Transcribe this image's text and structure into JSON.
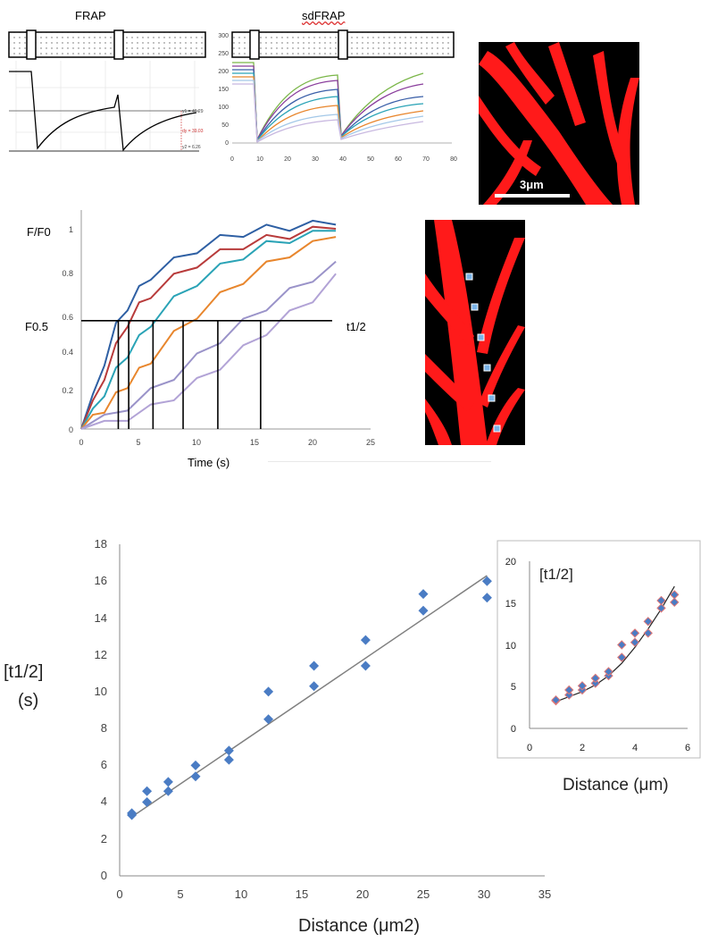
{
  "panel_a": {
    "frap_title": "FRAP",
    "sdfrap_title": "sdFRAP",
    "frap_readouts": [
      "y1 = 46.29",
      "dy = 39.03",
      "y2 = 6.26"
    ],
    "sdfrap_y_ticks": [
      "300",
      "250",
      "200",
      "150",
      "100",
      "50",
      "0"
    ],
    "sdfrap_x_ticks": [
      "0",
      "10",
      "20",
      "30",
      "40",
      "50",
      "60",
      "70",
      "80"
    ],
    "scale_bar": "3μm"
  },
  "panel_b": {
    "y_axis_label": "F/F0",
    "f_half_label": "F0.5",
    "t_half_label": "t1/2",
    "x_axis_label": "Time (s)",
    "y_ticks": [
      "1",
      "0.8",
      "0.6",
      "0.4",
      "0.2",
      "0"
    ],
    "x_ticks": [
      "0",
      "5",
      "10",
      "15",
      "20",
      "25"
    ]
  },
  "panel_c": {
    "y_label_line1": "[t1/2]",
    "y_label_line2": "(s)",
    "x_axis_label": "Distance (μm2)",
    "y_ticks": [
      "0",
      "2",
      "4",
      "6",
      "8",
      "10",
      "12",
      "14",
      "16",
      "18"
    ],
    "x_ticks": [
      "0",
      "5",
      "10",
      "15",
      "20",
      "25",
      "30",
      "35"
    ],
    "inset_label": "[t1/2]",
    "inset_x_label": "Distance (μm)",
    "inset_y_ticks": [
      "0",
      "5",
      "10",
      "15",
      "20"
    ],
    "inset_x_ticks": [
      "0",
      "2",
      "4",
      "6"
    ]
  },
  "colors": {
    "marker": "#4a7cc4",
    "fit_line": "#808080",
    "inset_marker_edge": "#d77",
    "curve_blue": "#2e5fa3",
    "curve_red": "#b83b3b",
    "curve_teal": "#2aa3b6",
    "curve_orange": "#e8862d",
    "curve_lilac": "#9a93c9",
    "curve_lilac2": "#b2a3d6"
  },
  "chart_data": [
    {
      "type": "line",
      "title": "",
      "xlabel": "Time (s)",
      "ylabel": "F/F0",
      "xlim": [
        0,
        25
      ],
      "ylim": [
        0,
        1.05
      ],
      "threshold_y": 0.53,
      "t_half_x": [
        3.2,
        4.1,
        6.2,
        8.8,
        11.8,
        15.5
      ],
      "series": [
        {
          "color": "curve_blue",
          "values": [
            [
              0,
              0
            ],
            [
              1,
              0.15
            ],
            [
              2,
              0.33
            ],
            [
              3,
              0.5
            ],
            [
              4,
              0.6
            ],
            [
              5,
              0.68
            ],
            [
              6,
              0.75
            ],
            [
              8,
              0.82
            ],
            [
              10,
              0.88
            ],
            [
              12,
              0.93
            ],
            [
              14,
              0.96
            ],
            [
              16,
              0.98
            ],
            [
              18,
              0.99
            ],
            [
              20,
              1.0
            ],
            [
              22,
              1.0
            ]
          ]
        },
        {
          "color": "curve_red",
          "values": [
            [
              0,
              0
            ],
            [
              1,
              0.12
            ],
            [
              2,
              0.26
            ],
            [
              3,
              0.4
            ],
            [
              4,
              0.52
            ],
            [
              5,
              0.6
            ],
            [
              6,
              0.66
            ],
            [
              8,
              0.74
            ],
            [
              10,
              0.81
            ],
            [
              12,
              0.86
            ],
            [
              14,
              0.9
            ],
            [
              16,
              0.93
            ],
            [
              18,
              0.95
            ],
            [
              20,
              0.97
            ],
            [
              22,
              0.98
            ]
          ]
        },
        {
          "color": "curve_teal",
          "values": [
            [
              0,
              0
            ],
            [
              1,
              0.08
            ],
            [
              2,
              0.18
            ],
            [
              3,
              0.28
            ],
            [
              4,
              0.37
            ],
            [
              5,
              0.44
            ],
            [
              6,
              0.52
            ],
            [
              8,
              0.63
            ],
            [
              10,
              0.72
            ],
            [
              12,
              0.79
            ],
            [
              14,
              0.85
            ],
            [
              16,
              0.9
            ],
            [
              18,
              0.93
            ],
            [
              20,
              0.95
            ],
            [
              22,
              0.97
            ]
          ]
        },
        {
          "color": "curve_orange",
          "values": [
            [
              0,
              0
            ],
            [
              1,
              0.05
            ],
            [
              2,
              0.1
            ],
            [
              3,
              0.16
            ],
            [
              4,
              0.22
            ],
            [
              5,
              0.28
            ],
            [
              6,
              0.34
            ],
            [
              8,
              0.46
            ],
            [
              10,
              0.56
            ],
            [
              12,
              0.65
            ],
            [
              14,
              0.73
            ],
            [
              16,
              0.8
            ],
            [
              18,
              0.86
            ],
            [
              20,
              0.9
            ],
            [
              22,
              0.94
            ]
          ]
        },
        {
          "color": "curve_lilac",
          "values": [
            [
              0,
              0
            ],
            [
              2,
              0.05
            ],
            [
              4,
              0.11
            ],
            [
              6,
              0.18
            ],
            [
              8,
              0.26
            ],
            [
              10,
              0.35
            ],
            [
              12,
              0.44
            ],
            [
              14,
              0.52
            ],
            [
              16,
              0.6
            ],
            [
              18,
              0.67
            ],
            [
              20,
              0.74
            ],
            [
              22,
              0.82
            ]
          ]
        },
        {
          "color": "curve_lilac2",
          "values": [
            [
              0,
              0
            ],
            [
              2,
              0.02
            ],
            [
              4,
              0.06
            ],
            [
              6,
              0.1
            ],
            [
              8,
              0.16
            ],
            [
              10,
              0.23
            ],
            [
              12,
              0.31
            ],
            [
              14,
              0.39
            ],
            [
              16,
              0.48
            ],
            [
              18,
              0.56
            ],
            [
              20,
              0.64
            ],
            [
              22,
              0.76
            ]
          ]
        }
      ]
    },
    {
      "type": "scatter",
      "title": "",
      "xlabel": "Distance (μm2)",
      "ylabel": "[t1/2] (s)",
      "xlim": [
        0,
        35
      ],
      "ylim": [
        0,
        18
      ],
      "fit": [
        [
          1,
          3.2
        ],
        [
          30.25,
          16.3
        ]
      ],
      "points": [
        [
          1,
          3.3
        ],
        [
          1,
          3.4
        ],
        [
          2.25,
          4.0
        ],
        [
          2.25,
          4.6
        ],
        [
          4,
          4.6
        ],
        [
          4,
          5.1
        ],
        [
          6.25,
          5.4
        ],
        [
          6.25,
          6.0
        ],
        [
          9,
          6.3
        ],
        [
          9,
          6.8
        ],
        [
          12.25,
          8.5
        ],
        [
          12.25,
          10.0
        ],
        [
          16,
          10.3
        ],
        [
          16,
          11.4
        ],
        [
          20.25,
          11.4
        ],
        [
          20.25,
          12.8
        ],
        [
          25,
          14.4
        ],
        [
          25,
          15.3
        ],
        [
          30.25,
          15.1
        ],
        [
          30.25,
          16.0
        ]
      ]
    },
    {
      "type": "scatter",
      "title": "",
      "xlabel": "Distance (μm)",
      "ylabel": "[t1/2]",
      "xlim": [
        0,
        6
      ],
      "ylim": [
        0,
        20
      ],
      "fit": [
        [
          1,
          3.2
        ],
        [
          1.5,
          3.8
        ],
        [
          2,
          4.4
        ],
        [
          2.5,
          5.2
        ],
        [
          3,
          6.3
        ],
        [
          3.5,
          7.8
        ],
        [
          4,
          9.7
        ],
        [
          4.5,
          11.9
        ],
        [
          5,
          14.3
        ],
        [
          5.5,
          17.0
        ]
      ],
      "points": [
        [
          1,
          3.3
        ],
        [
          1,
          3.4
        ],
        [
          1.5,
          4.0
        ],
        [
          1.5,
          4.6
        ],
        [
          2,
          4.6
        ],
        [
          2,
          5.1
        ],
        [
          2.5,
          5.4
        ],
        [
          2.5,
          6.0
        ],
        [
          3,
          6.3
        ],
        [
          3,
          6.8
        ],
        [
          3.5,
          8.5
        ],
        [
          3.5,
          10.0
        ],
        [
          4,
          10.3
        ],
        [
          4,
          11.4
        ],
        [
          4.5,
          11.4
        ],
        [
          4.5,
          12.8
        ],
        [
          5,
          14.4
        ],
        [
          5,
          15.3
        ],
        [
          5.5,
          15.1
        ],
        [
          5.5,
          16.0
        ]
      ]
    }
  ]
}
